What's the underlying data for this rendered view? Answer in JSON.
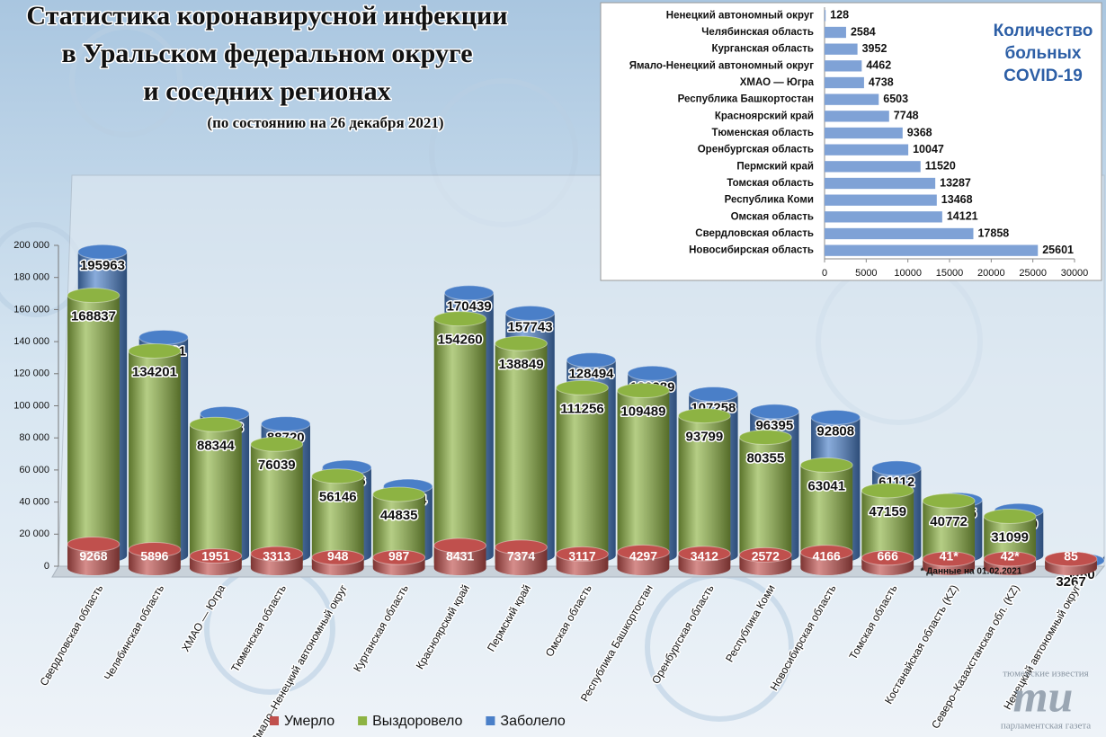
{
  "chart_data": [
    {
      "type": "bar3d",
      "title": [
        "Статистика коронавирусной инфекции",
        "в Уральском федеральном округе",
        "и соседних регионах"
      ],
      "subtitle": "(по состоянию на 26 декабря 2021)",
      "annotation": "* Данные на 01.02.2021",
      "categories": [
        "Свердловская область",
        "Челябинская область",
        "ХМАО — Югра",
        "Тюменская область",
        "Ямало–Ненецкий автономный округ",
        "Курганская область",
        "Красноярский край",
        "Пермский край",
        "Омская область",
        "Республика Башкортостан",
        "Оренбургская область",
        "Республика Коми",
        "Новосибирская область",
        "Томская область",
        "Костанайская область (KZ)",
        "Северо–Казахстанская обл. (KZ)",
        "Ненецкий автономный округ"
      ],
      "series": [
        {
          "name": "Умерло",
          "color": "#c0504d",
          "values": [
            9268,
            5896,
            1951,
            3313,
            948,
            987,
            8431,
            7374,
            3117,
            4297,
            3412,
            2572,
            4166,
            666,
            41,
            42,
            85
          ],
          "value_labels": [
            "9268",
            "5896",
            "1951",
            "3313",
            "948",
            "987",
            "8431",
            "7374",
            "3117",
            "4297",
            "3412",
            "2572",
            "4166",
            "666",
            "41*",
            "42*",
            "85"
          ]
        },
        {
          "name": "Выздоровело",
          "color": "#8db343",
          "values": [
            168837,
            134201,
            88344,
            76039,
            56146,
            44835,
            154260,
            138849,
            111256,
            109489,
            93799,
            80355,
            63041,
            47159,
            40772,
            31099,
            3267
          ]
        },
        {
          "name": "Заболело",
          "color": "#4a7fc8",
          "values": [
            195963,
            142681,
            95033,
            88720,
            61556,
            49774,
            170439,
            157743,
            128494,
            120289,
            107258,
            96395,
            92808,
            61112,
            41305,
            34600,
            3480
          ]
        }
      ],
      "ylim": [
        0,
        200000
      ],
      "yticks": [
        0,
        {
          "value": 20000,
          "label": "20 000"
        },
        {
          "value": 40000,
          "label": "40 000"
        },
        {
          "value": 60000,
          "label": "60 000"
        },
        {
          "value": 80000,
          "label": "80 000"
        },
        {
          "value": 100000,
          "label": "100 000"
        },
        {
          "value": 120000,
          "label": "120 000"
        },
        {
          "value": 140000,
          "label": "140 000"
        },
        {
          "value": 160000,
          "label": "160 000"
        },
        {
          "value": 180000,
          "label": "180 000"
        },
        {
          "value": 200000,
          "label": "200 000"
        }
      ],
      "grid": false,
      "legend": "bottom"
    },
    {
      "type": "hbar",
      "title": [
        "Количество",
        "больных",
        "COVID-19"
      ],
      "categories": [
        "Ненецкий автономный округ",
        "Челябинская область",
        "Курганская область",
        "Ямало-Ненецкий автономный округ",
        "ХМАО — Югра",
        "Республика Башкортостан",
        "Красноярский край",
        "Тюменская область",
        "Оренбургская область",
        "Пермский край",
        "Томская область",
        "Республика Коми",
        "Омская область",
        "Свердловская область",
        "Новосибирская область"
      ],
      "values": [
        128,
        2584,
        3952,
        4462,
        4738,
        6503,
        7748,
        9368,
        10047,
        11520,
        13287,
        13468,
        14121,
        17858,
        25601
      ],
      "color": "#7fa2d6",
      "xlim": [
        0,
        30000
      ],
      "xticks": [
        0,
        5000,
        10000,
        15000,
        20000,
        25000,
        30000
      ],
      "grid": false
    }
  ],
  "watermark": {
    "top": "тюменские известия",
    "logo": "mu",
    "bottom": "парламентская газета"
  }
}
